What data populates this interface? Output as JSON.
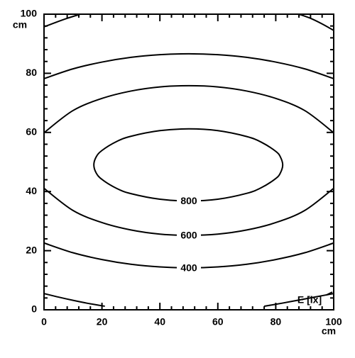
{
  "chart_data": {
    "type": "contour",
    "x_label": "cm",
    "y_label": "cm",
    "annotation": "E [lx]",
    "color": "#000000",
    "xlim": [
      0,
      100
    ],
    "ylim": [
      0,
      100
    ],
    "xticks": [
      0,
      20,
      40,
      60,
      80,
      100
    ],
    "yticks": [
      0,
      20,
      40,
      60,
      80,
      100
    ],
    "contours": [
      {
        "level": 800,
        "lines": [
          {
            "closed": true,
            "x": [
              17.2,
              18,
              20,
              25,
              30,
              40,
              50,
              60,
              70,
              75,
              80,
              81.6,
              82.4,
              81.6,
              80,
              75,
              70,
              60,
              50,
              40,
              30,
              25,
              20,
              18
            ],
            "y": [
              49,
              51.7,
              53.9,
              56.9,
              58.7,
              60.6,
              61.2,
              60.6,
              58.6,
              56.7,
              53.6,
              51.7,
              49,
              46.3,
              44.4,
              41.3,
              39.4,
              37.4,
              36.8,
              37.4,
              39.3,
              41.1,
              44.1,
              46.3
            ]
          }
        ]
      },
      {
        "level": 600,
        "lines": [
          {
            "x": [
              0,
              10,
              20,
              30,
              40,
              50,
              60,
              70,
              80,
              90,
              100
            ],
            "y": [
              59.9,
              67.4,
              71.5,
              74,
              75.4,
              75.8,
              75.4,
              74,
              71.5,
              67.4,
              59.9
            ]
          },
          {
            "x": [
              0,
              10,
              20,
              30,
              40,
              50,
              60,
              70,
              80,
              90,
              100
            ],
            "y": [
              41.1,
              33.6,
              29.5,
              27,
              25.6,
              25.2,
              25.6,
              27,
              29.5,
              33.6,
              41.1
            ]
          }
        ]
      },
      {
        "level": 400,
        "lines": [
          {
            "x": [
              0,
              10,
              20,
              30,
              40,
              50,
              60,
              70,
              80,
              90,
              100
            ],
            "y": [
              78.2,
              81.5,
              83.8,
              85.4,
              86.3,
              86.6,
              86.3,
              85.4,
              83.8,
              81.5,
              78.2
            ]
          },
          {
            "x": [
              0,
              10,
              20,
              30,
              40,
              50,
              60,
              70,
              80,
              90,
              100
            ],
            "y": [
              22.6,
              19.3,
              17,
              15.4,
              14.5,
              14.2,
              14.5,
              15.4,
              17,
              19.3,
              22.6
            ]
          }
        ]
      },
      {
        "lines": [
          {
            "x": [
              0,
              5,
              10,
              15,
              21
            ],
            "y": [
              5.5,
              4.3,
              3.2,
              2.2,
              1.2
            ]
          },
          {
            "x": [
              76,
              82,
              88,
              94,
              100
            ],
            "y": [
              1.2,
              2.2,
              3.3,
              4.4,
              5.5
            ]
          },
          {
            "x": [
              0,
              4,
              8,
              12.5
            ],
            "y": [
              95.7,
              97.2,
              98.6,
              100
            ]
          },
          {
            "x": [
              88,
              92,
              96,
              100
            ],
            "y": [
              100,
              98.6,
              96.7,
              94.5
            ]
          }
        ]
      }
    ]
  }
}
